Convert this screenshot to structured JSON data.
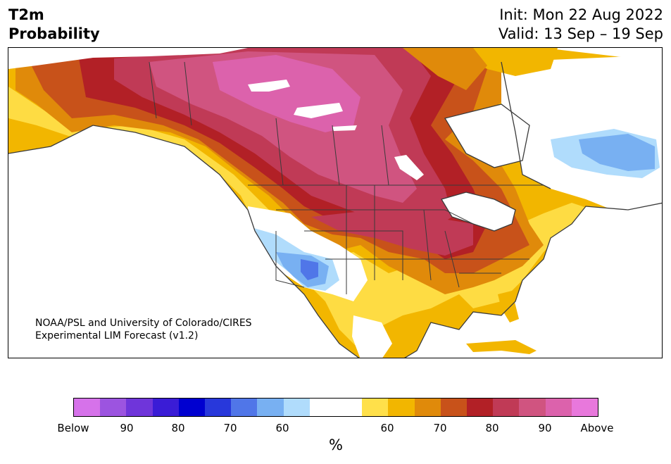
{
  "header": {
    "title_line1": "T2m",
    "title_line2": "Probability",
    "init_text": "Init: Mon 22 Aug 2022",
    "valid_text": "Valid: 13 Sep – 19 Sep"
  },
  "map": {
    "credit_line1": "NOAA/PSL and University of Colorado/CIRES",
    "credit_line2": "Experimental LIM Forecast (v1.2)"
  },
  "colorbar": {
    "colors": [
      "#d672ea",
      "#9c54e0",
      "#6f35da",
      "#3a1cd6",
      "#0000d0",
      "#2838db",
      "#5076e8",
      "#78b0f2",
      "#b0dcfc",
      "#ffffff",
      "#ffffff",
      "#ffe04a",
      "#f2b600",
      "#e08a0a",
      "#c8521a",
      "#b22026",
      "#c03a56",
      "#d05480",
      "#dc62ac",
      "#e878dc"
    ],
    "tick_labels": [
      "Below",
      "90",
      "80",
      "70",
      "60",
      "60",
      "70",
      "80",
      "90",
      "Above"
    ],
    "unit": "%"
  },
  "region_colors": {
    "white": "#ffffff",
    "lightblue": "#b0dcfc",
    "blue": "#78b0f2",
    "medblue": "#5076e8",
    "darkblue": "#2838db",
    "yellow": "#ffe04a",
    "gold": "#f2b600",
    "orange": "#e08a0a",
    "darkorange": "#c8521a",
    "red": "#b22026",
    "crimson": "#c03a56",
    "rose": "#d05480",
    "pink": "#dc62ac",
    "border": "#3a3a3a"
  }
}
